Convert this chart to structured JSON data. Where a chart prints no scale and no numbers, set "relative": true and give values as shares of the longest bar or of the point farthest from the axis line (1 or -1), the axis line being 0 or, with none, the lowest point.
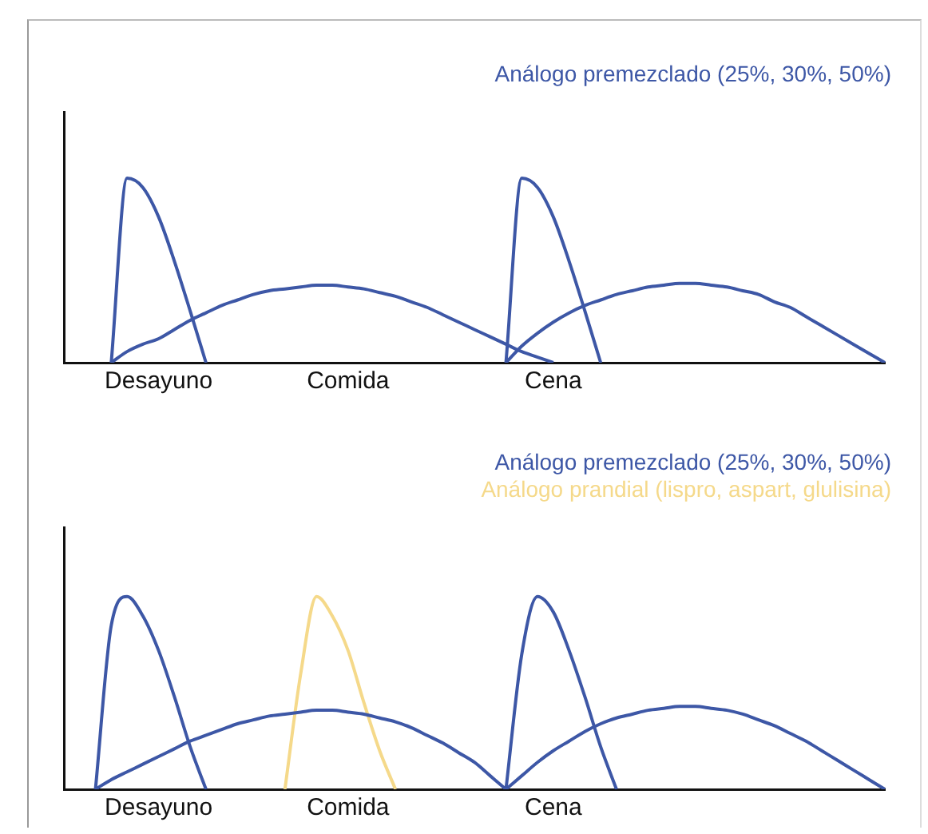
{
  "chart_data": [
    {
      "type": "line",
      "relative": true,
      "legend": "top right",
      "tick_labels": "x",
      "grid": false,
      "marker": "none",
      "line_style": "solid",
      "categories": [
        null,
        null,
        null,
        null,
        null,
        null,
        "Desayuno",
        null,
        null,
        null,
        null,
        null,
        null,
        null,
        null,
        null,
        null,
        null,
        "Comida",
        null,
        null,
        null,
        null,
        null,
        null,
        null,
        null,
        null,
        null,
        null,
        null,
        "Cena",
        null,
        null,
        null,
        null,
        null,
        null,
        null,
        null,
        null,
        null,
        null,
        null,
        null,
        null,
        null,
        null,
        null,
        null,
        null,
        null,
        null
      ],
      "series": [
        {
          "name": "Análogo premezclado (25%, 30%, 50%)",
          "color": "#3d57a6",
          "values": [
            null,
            null,
            null,
            0,
            1,
            0.95,
            0.79,
            0.55,
            0.28,
            0,
            null,
            null,
            null,
            null,
            null,
            null,
            null,
            null,
            null,
            null,
            null,
            null,
            null,
            null,
            null,
            null,
            null,
            null,
            null,
            null,
            null,
            null,
            null,
            null,
            null,
            null,
            null,
            null,
            null,
            null,
            null,
            null,
            null,
            null,
            null,
            null,
            null,
            null,
            null,
            null,
            null,
            null,
            null
          ]
        },
        {
          "color": "#3d57a6",
          "values": [
            null,
            null,
            null,
            0,
            0.06,
            0.1,
            0.13,
            0.18,
            0.23,
            0.27,
            0.31,
            0.34,
            0.37,
            0.39,
            0.4,
            0.41,
            0.42,
            0.42,
            0.41,
            0.4,
            0.38,
            0.36,
            0.33,
            0.3,
            0.26,
            0.22,
            0.18,
            0.14,
            0.1,
            0.06,
            0.03,
            0,
            null,
            null,
            null,
            null,
            null,
            null,
            null,
            null,
            null,
            null,
            null,
            null,
            null,
            null,
            null,
            null,
            null,
            null,
            null,
            null,
            null
          ]
        },
        {
          "color": "#3d57a6",
          "values": [
            null,
            null,
            null,
            null,
            null,
            null,
            null,
            null,
            null,
            null,
            null,
            null,
            null,
            null,
            null,
            null,
            null,
            null,
            null,
            null,
            null,
            null,
            null,
            null,
            null,
            null,
            null,
            null,
            0,
            1,
            0.95,
            0.79,
            0.55,
            0.28,
            0,
            null,
            null,
            null,
            null,
            null,
            null,
            null,
            null,
            null,
            null,
            null,
            null,
            null,
            null,
            null,
            null,
            null,
            null
          ]
        },
        {
          "color": "#3d57a6",
          "values": [
            null,
            null,
            null,
            null,
            null,
            null,
            null,
            null,
            null,
            null,
            null,
            null,
            null,
            null,
            null,
            null,
            null,
            null,
            null,
            null,
            null,
            null,
            null,
            null,
            null,
            null,
            null,
            null,
            0,
            0.09,
            0.16,
            0.22,
            0.27,
            0.31,
            0.34,
            0.37,
            0.39,
            0.41,
            0.42,
            0.43,
            0.43,
            0.42,
            0.41,
            0.39,
            0.37,
            0.33,
            0.3,
            0.25,
            0.2,
            0.15,
            0.1,
            0.05,
            0
          ]
        }
      ]
    },
    {
      "type": "line",
      "relative": true,
      "legend": "top right",
      "tick_labels": "x",
      "grid": false,
      "marker": "none",
      "line_style": "solid",
      "categories": [
        null,
        null,
        null,
        null,
        null,
        null,
        "Desayuno",
        null,
        null,
        null,
        null,
        null,
        null,
        null,
        null,
        null,
        null,
        null,
        "Comida",
        null,
        null,
        null,
        null,
        null,
        null,
        null,
        null,
        null,
        null,
        null,
        null,
        "Cena",
        null,
        null,
        null,
        null,
        null,
        null,
        null,
        null,
        null,
        null,
        null,
        null,
        null,
        null,
        null,
        null,
        null,
        null,
        null,
        null,
        null
      ],
      "series": [
        {
          "name": "Análogo premezclado (25%, 30%, 50%)",
          "color": "#3d57a6",
          "values": [
            null,
            null,
            0,
            0.85,
            1,
            0.9,
            0.72,
            0.48,
            0.22,
            0,
            null,
            null,
            null,
            null,
            null,
            null,
            null,
            null,
            null,
            null,
            null,
            null,
            null,
            null,
            null,
            null,
            null,
            null,
            null,
            null,
            null,
            null,
            null,
            null,
            null,
            null,
            null,
            null,
            null,
            null,
            null,
            null,
            null,
            null,
            null,
            null,
            null,
            null,
            null,
            null,
            null,
            null,
            null
          ]
        },
        {
          "color": "#3d57a6",
          "values": [
            null,
            null,
            0,
            0.05,
            0.09,
            0.13,
            0.17,
            0.21,
            0.25,
            0.28,
            0.31,
            0.34,
            0.36,
            0.38,
            0.39,
            0.4,
            0.41,
            0.41,
            0.4,
            0.39,
            0.37,
            0.35,
            0.32,
            0.28,
            0.24,
            0.19,
            0.14,
            0.07,
            0,
            null,
            null,
            null,
            null,
            null,
            null,
            null,
            null,
            null,
            null,
            null,
            null,
            null,
            null,
            null,
            null,
            null,
            null,
            null,
            null,
            null,
            null,
            null,
            null
          ]
        },
        {
          "name": "Análogo prandial (lispro, aspart, glulisina)",
          "color": "#f5d98a",
          "values": [
            null,
            null,
            null,
            null,
            null,
            null,
            null,
            null,
            null,
            null,
            null,
            null,
            null,
            null,
            0,
            0.6,
            1,
            0.9,
            0.72,
            0.45,
            0.2,
            0,
            null,
            null,
            null,
            null,
            null,
            null,
            null,
            null,
            null,
            null,
            null,
            null,
            null,
            null,
            null,
            null,
            null,
            null,
            null,
            null,
            null,
            null,
            null,
            null,
            null,
            null,
            null,
            null,
            null,
            null,
            null
          ]
        },
        {
          "color": "#3d57a6",
          "values": [
            null,
            null,
            null,
            null,
            null,
            null,
            null,
            null,
            null,
            null,
            null,
            null,
            null,
            null,
            null,
            null,
            null,
            null,
            null,
            null,
            null,
            null,
            null,
            null,
            null,
            null,
            null,
            null,
            0,
            0.7,
            1,
            0.92,
            0.72,
            0.48,
            0.22,
            0,
            null,
            null,
            null,
            null,
            null,
            null,
            null,
            null,
            null,
            null,
            null,
            null,
            null,
            null,
            null,
            null,
            null
          ]
        },
        {
          "color": "#3d57a6",
          "values": [
            null,
            null,
            null,
            null,
            null,
            null,
            null,
            null,
            null,
            null,
            null,
            null,
            null,
            null,
            null,
            null,
            null,
            null,
            null,
            null,
            null,
            null,
            null,
            null,
            null,
            null,
            null,
            null,
            0,
            0.07,
            0.14,
            0.2,
            0.25,
            0.3,
            0.34,
            0.37,
            0.39,
            0.41,
            0.42,
            0.43,
            0.43,
            0.42,
            0.41,
            0.39,
            0.36,
            0.33,
            0.29,
            0.25,
            0.2,
            0.15,
            0.1,
            0.05,
            0
          ]
        }
      ]
    }
  ]
}
